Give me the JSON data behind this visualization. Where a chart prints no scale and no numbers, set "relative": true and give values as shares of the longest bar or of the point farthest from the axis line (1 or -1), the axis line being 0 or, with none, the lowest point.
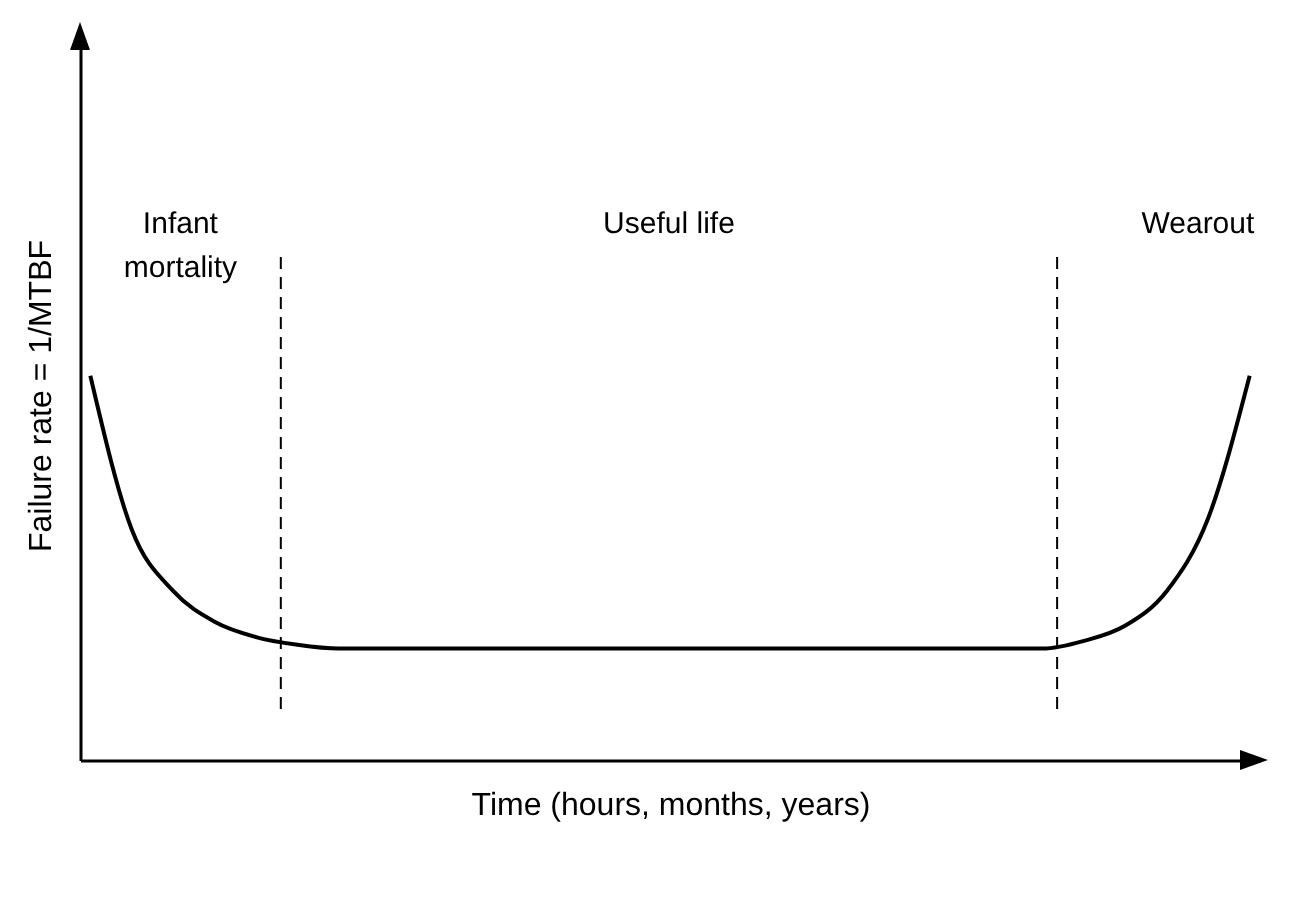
{
  "chart_data": {
    "type": "line",
    "relative": true,
    "xlabel": "Time (hours, months, years)",
    "ylabel": "Failure rate = 1/MTBF",
    "categories": [
      null,
      null,
      null,
      null,
      null,
      null,
      null,
      null,
      null,
      null,
      null,
      null,
      null,
      null,
      null,
      null,
      null,
      null,
      null,
      null,
      null,
      null,
      null,
      null,
      null,
      null,
      null,
      null,
      null
    ],
    "series": [
      {
        "color": "#000000",
        "values": [
          1.0,
          0.6,
          0.44,
          0.36,
          0.32,
          0.3,
          0.29,
          0.29,
          0.29,
          0.29,
          0.29,
          0.29,
          0.29,
          0.29,
          0.29,
          0.29,
          0.29,
          0.29,
          0.29,
          0.29,
          0.29,
          0.29,
          0.29,
          0.29,
          0.31,
          0.35,
          0.44,
          0.63,
          1.0
        ]
      }
    ],
    "annotations": [
      "Infant\nmortality",
      "Useful life",
      "Wearout"
    ],
    "grid": false,
    "marker": "none",
    "line_style": "solid"
  }
}
